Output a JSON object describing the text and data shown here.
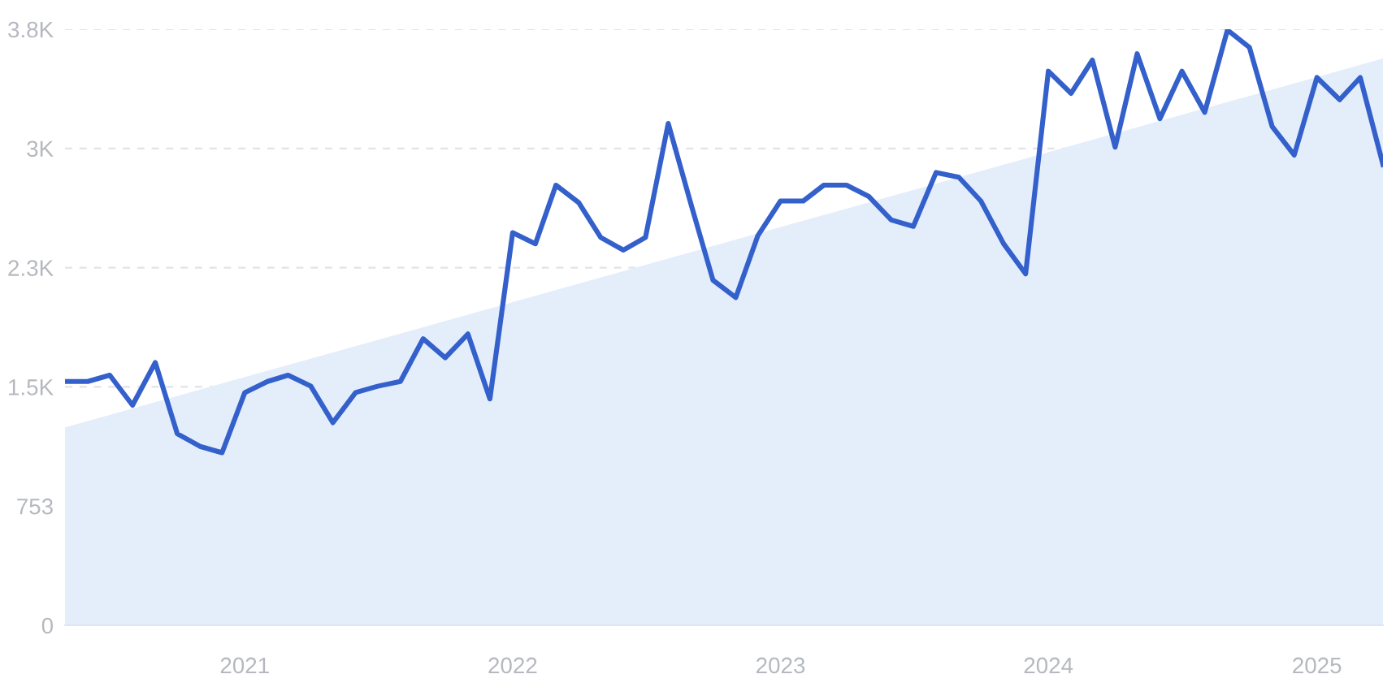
{
  "chart_data": {
    "type": "line",
    "grid": "y",
    "marker": "none",
    "line_style": "solid",
    "xlim": [
      "2020-05",
      "2025-04"
    ],
    "xticks": [
      {
        "value": "2021-01",
        "label": "2021"
      },
      {
        "value": "2022-01",
        "label": "2022"
      },
      {
        "value": "2023-01",
        "label": "2023"
      },
      {
        "value": "2024-01",
        "label": "2024"
      },
      {
        "value": "2025-01",
        "label": "2025"
      }
    ],
    "ylim": [
      0,
      3765
    ],
    "yticks": [
      0,
      753,
      {
        "value": 1506,
        "label": "1.5K"
      },
      {
        "value": 2259,
        "label": "2.3K"
      },
      {
        "value": 3012,
        "label": "3K"
      },
      {
        "value": 3765,
        "label": "3.8K"
      }
    ],
    "series": [
      {
        "type": "area",
        "color": "#e4eefb",
        "x": [
          "2020-05",
          "2025-04"
        ],
        "values": [
          1250,
          3580
        ]
      },
      {
        "color": "#3460cc",
        "x": [
          "2020-05",
          "2020-06",
          "2020-07",
          "2020-08",
          "2020-09",
          "2020-10",
          "2020-11",
          "2020-12",
          "2021-01",
          "2021-02",
          "2021-03",
          "2021-04",
          "2021-05",
          "2021-06",
          "2021-07",
          "2021-08",
          "2021-09",
          "2021-10",
          "2021-11",
          "2021-12",
          "2022-01",
          "2022-02",
          "2022-03",
          "2022-04",
          "2022-05",
          "2022-06",
          "2022-07",
          "2022-08",
          "2022-09",
          "2022-10",
          "2022-11",
          "2022-12",
          "2023-01",
          "2023-02",
          "2023-03",
          "2023-04",
          "2023-05",
          "2023-06",
          "2023-07",
          "2023-08",
          "2023-09",
          "2023-10",
          "2023-11",
          "2023-12",
          "2024-01",
          "2024-02",
          "2024-03",
          "2024-04",
          "2024-05",
          "2024-06",
          "2024-07",
          "2024-08",
          "2024-09",
          "2024-10",
          "2024-11",
          "2024-12",
          "2025-01",
          "2025-02",
          "2025-03",
          "2025-04"
        ],
        "values": [
          1540,
          1540,
          1580,
          1390,
          1660,
          1210,
          1130,
          1090,
          1470,
          1540,
          1580,
          1510,
          1280,
          1470,
          1510,
          1540,
          1810,
          1690,
          1840,
          1430,
          2480,
          2410,
          2780,
          2670,
          2450,
          2370,
          2450,
          3170,
          2660,
          2180,
          2070,
          2460,
          2680,
          2680,
          2780,
          2780,
          2710,
          2560,
          2520,
          2860,
          2830,
          2680,
          2410,
          2220,
          3500,
          3360,
          3570,
          3020,
          3610,
          3200,
          3500,
          3240,
          3760,
          3650,
          3150,
          2970,
          3460,
          3320,
          3460,
          2910
        ]
      }
    ]
  }
}
